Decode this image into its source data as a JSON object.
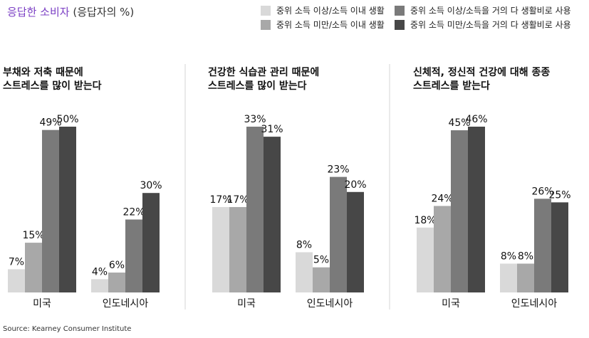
{
  "header": {
    "accent": "응답한 소비자",
    "rest": " (응답자의 %)"
  },
  "legend": [
    {
      "label": "중위 소득 이상/소득 이내 생활",
      "color": "#d9d9d9"
    },
    {
      "label": "중위 소득 이상/소득을 거의 다 생활비로 사용",
      "color": "#7a7a7a"
    },
    {
      "label": "중위 소득 미만/소득 이내 생활",
      "color": "#a8a8a8"
    },
    {
      "label": "중위 소득 미만/소득을 거의 다 생활비로 사용",
      "color": "#474747"
    }
  ],
  "chart_data": [
    {
      "type": "bar",
      "title": "부채와 저축 때문에\n스트레스를 많이 받는다",
      "categories": [
        "미국",
        "인도네시아"
      ],
      "series": [
        {
          "name": "중위 소득 이상/소득 이내 생활",
          "values": [
            7,
            4
          ]
        },
        {
          "name": "중위 소득 미만/소득 이내 생활",
          "values": [
            15,
            6
          ]
        },
        {
          "name": "중위 소득 이상/소득을 거의 다 생활비로 사용",
          "values": [
            49,
            22
          ]
        },
        {
          "name": "중위 소득 미만/소득을 거의 다 생활비로 사용",
          "values": [
            50,
            30
          ]
        }
      ],
      "ylim": [
        0,
        60
      ]
    },
    {
      "type": "bar",
      "title": "건강한 식습관 관리 때문에\n스트레스를 많이 받는다",
      "categories": [
        "미국",
        "인도네시아"
      ],
      "series": [
        {
          "name": "중위 소득 이상/소득 이내 생활",
          "values": [
            17,
            8
          ]
        },
        {
          "name": "중위 소득 미만/소득 이내 생활",
          "values": [
            17,
            5
          ]
        },
        {
          "name": "중위 소득 이상/소득을 거의 다 생활비로 사용",
          "values": [
            33,
            23
          ]
        },
        {
          "name": "중위 소득 미만/소득을 거의 다 생활비로 사용",
          "values": [
            31,
            20
          ]
        }
      ],
      "ylim": [
        0,
        40
      ]
    },
    {
      "type": "bar",
      "title": "신체적, 정신적 건강에 대해 종종\n스트레스를 받는다",
      "categories": [
        "미국",
        "인도네시아"
      ],
      "series": [
        {
          "name": "중위 소득 이상/소득 이내 생활",
          "values": [
            18,
            8
          ]
        },
        {
          "name": "중위 소득 미만/소득 이내 생활",
          "values": [
            24,
            8
          ]
        },
        {
          "name": "중위 소득 이상/소득을 거의 다 생활비로 사용",
          "values": [
            45,
            26
          ]
        },
        {
          "name": "중위 소득 미만/소득을 거의 다 생활비로 사용",
          "values": [
            46,
            25
          ]
        }
      ],
      "ylim": [
        0,
        55
      ]
    }
  ],
  "value_suffix": "%",
  "series_colors": [
    "#d9d9d9",
    "#a8a8a8",
    "#7a7a7a",
    "#474747"
  ],
  "source": "Source: Kearney Consumer Institute"
}
